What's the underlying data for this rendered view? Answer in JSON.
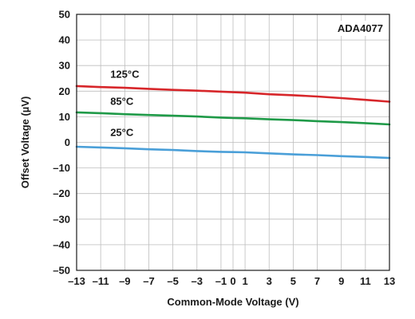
{
  "chart_data": {
    "type": "line",
    "title": "",
    "badge": "ADA4077",
    "xlabel": "Common-Mode Voltage (V)",
    "ylabel": "Offset Voltage (µV)",
    "xlim": [
      -13,
      13
    ],
    "ylim": [
      -50,
      50
    ],
    "xticks": [
      -13,
      -11,
      -9,
      -7,
      -5,
      -3,
      -1,
      0,
      1,
      3,
      5,
      7,
      9,
      11,
      13
    ],
    "xtick_labels": [
      "–13",
      "–11",
      "–9",
      "–7",
      "–5",
      "–3",
      "–1",
      "0",
      "1",
      "3",
      "5",
      "7",
      "9",
      "11",
      "13"
    ],
    "yticks": [
      -50,
      -40,
      -30,
      -20,
      -10,
      0,
      10,
      20,
      30,
      40,
      50
    ],
    "ytick_labels": [
      "–50",
      "–40",
      "–30",
      "–20",
      "–10",
      "0",
      "10",
      "20",
      "30",
      "40",
      "50"
    ],
    "grid": true,
    "series": [
      {
        "name": "125°C",
        "color": "#d7262a",
        "x": [
          -13,
          -11,
          -9,
          -7,
          -5,
          -3,
          -1,
          0,
          1,
          3,
          5,
          7,
          9,
          11,
          13
        ],
        "y": [
          22.0,
          21.6,
          21.3,
          20.9,
          20.5,
          20.2,
          19.8,
          19.6,
          19.4,
          18.8,
          18.4,
          17.9,
          17.3,
          16.6,
          15.9
        ]
      },
      {
        "name": "85°C",
        "color": "#1f9a48",
        "x": [
          -13,
          -11,
          -9,
          -7,
          -5,
          -3,
          -1,
          0,
          1,
          3,
          5,
          7,
          9,
          11,
          13
        ],
        "y": [
          11.7,
          11.4,
          11.0,
          10.7,
          10.4,
          10.1,
          9.7,
          9.5,
          9.4,
          9.0,
          8.7,
          8.3,
          7.9,
          7.5,
          7.0
        ]
      },
      {
        "name": "25°C",
        "color": "#4a9fd8",
        "x": [
          -13,
          -11,
          -9,
          -7,
          -5,
          -3,
          -1,
          0,
          1,
          3,
          5,
          7,
          9,
          11,
          13
        ],
        "y": [
          -1.7,
          -2.0,
          -2.3,
          -2.7,
          -3.0,
          -3.4,
          -3.7,
          -3.8,
          -3.9,
          -4.3,
          -4.7,
          -5.0,
          -5.4,
          -5.7,
          -6.1
        ]
      }
    ],
    "annotations": [
      {
        "text": "125°C",
        "x": -10.2,
        "y": 25.2
      },
      {
        "text": "85°C",
        "x": -10.2,
        "y": 14.7
      },
      {
        "text": "25°C",
        "x": -10.2,
        "y": 2.5
      }
    ]
  }
}
